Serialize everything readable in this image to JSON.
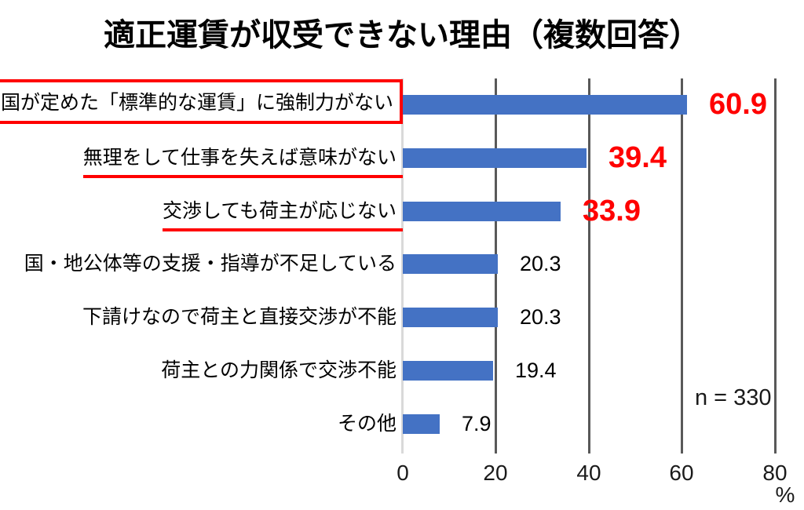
{
  "chart_data": {
    "type": "bar",
    "orientation": "horizontal",
    "title": "適正運賃が収受できない理由（複数回答）",
    "categories": [
      "国が定めた「標準的な運賃」に強制力がない",
      "無理をして仕事を失えば意味がない",
      "交渉しても荷主が応じない",
      "国・地公体等の支援・指導が不足している",
      "下請けなので荷主と直接交渉が不能",
      "荷主との力関係で交渉不能",
      "その他"
    ],
    "values": [
      60.9,
      39.4,
      33.9,
      20.3,
      20.3,
      19.4,
      7.9
    ],
    "display_values": [
      "60.9",
      "39.4",
      "33.9",
      "20.3",
      "20.3",
      "19.4",
      "7.9"
    ],
    "highlighted_values": [
      true,
      true,
      true,
      false,
      false,
      false,
      false
    ],
    "label_emphasis": [
      "red-box",
      "red-underline",
      "red-underline",
      "none",
      "none",
      "none",
      "none"
    ],
    "sample_size": "n = 330",
    "x_ticks": [
      "0",
      "20",
      "40",
      "60",
      "80"
    ],
    "x_axis_unit": "%",
    "xlim": [
      0,
      80
    ],
    "ylabel": "",
    "legend": "none",
    "grid": "vertical",
    "colors": {
      "bar": "#4472C4",
      "highlight_text": "#FF0000",
      "value_text": "#000000",
      "gridline": "#595959",
      "axis_line": "#D9D9D9"
    }
  }
}
